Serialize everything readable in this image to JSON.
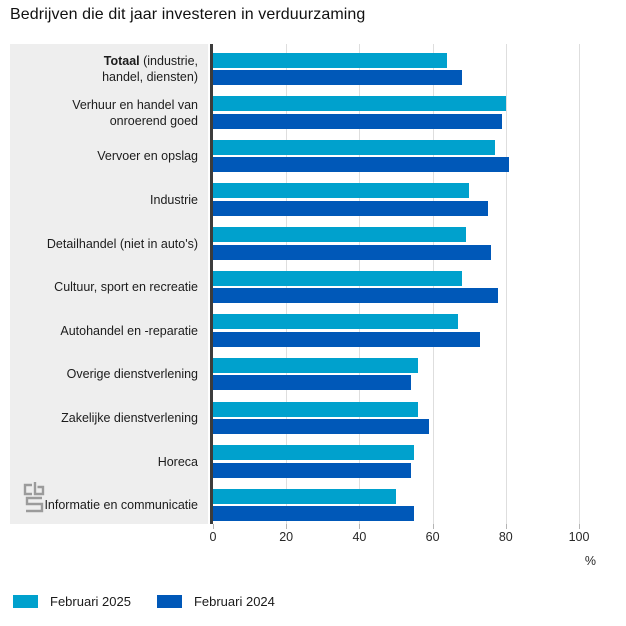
{
  "title": "Bedrijven die dit jaar investeren in verduurzaming",
  "chart_data": {
    "type": "bar",
    "orientation": "horizontal",
    "title": "Bedrijven die dit jaar investeren in verduurzaming",
    "categories": [
      "Totaal (industrie, handel, diensten)",
      "Verhuur en handel van onroerend goed",
      "Vervoer en opslag",
      "Industrie",
      "Detailhandel (niet in auto's)",
      "Cultuur, sport en recreatie",
      "Autohandel en -reparatie",
      "Overige dienstverlening",
      "Zakelijke dienstverlening",
      "Horeca",
      "Informatie en communicatie"
    ],
    "category_lines": [
      [
        "Totaal (industrie,",
        "handel, diensten)"
      ],
      [
        "Verhuur en handel van",
        "onroerend goed"
      ],
      [
        "Vervoer en opslag"
      ],
      [
        "Industrie"
      ],
      [
        "Detailhandel (niet in auto's)"
      ],
      [
        "Cultuur, sport en recreatie"
      ],
      [
        "Autohandel en -reparatie"
      ],
      [
        "Overige dienstverlening"
      ],
      [
        "Zakelijke dienstverlening"
      ],
      [
        "Horeca"
      ],
      [
        "Informatie en communicatie"
      ]
    ],
    "emphasized_category": {
      "index": 0,
      "bold_text": "Totaal"
    },
    "series": [
      {
        "name": "Februari 2025",
        "color": "#00a1cd",
        "values": [
          64,
          80,
          77,
          70,
          69,
          68,
          67,
          56,
          56,
          55,
          50
        ]
      },
      {
        "name": "Februari 2024",
        "color": "#0058b8",
        "values": [
          68,
          79,
          81,
          75,
          76,
          78,
          73,
          54,
          59,
          54,
          55
        ]
      }
    ],
    "xlim": [
      0,
      100
    ],
    "xticks": [
      0,
      20,
      40,
      60,
      80,
      100
    ],
    "unit_label": "%",
    "grid": true,
    "legend_position": "bottom-left",
    "colors": {
      "label_panel_bg": "#eeeeee",
      "axis_line": "#3c3c3c",
      "gridline": "#dedede"
    },
    "logo_icon": "cbs-logo"
  }
}
